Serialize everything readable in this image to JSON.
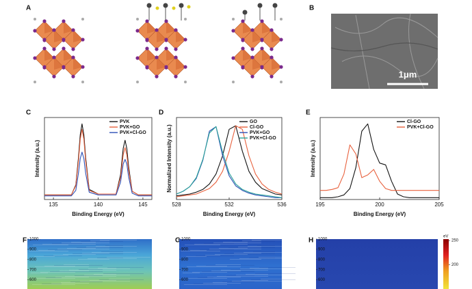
{
  "image_panels": [
    {
      "panel": "A"
    },
    {
      "panel": "B",
      "scale_bar": "1μm"
    }
  ],
  "chart_data": [
    {
      "type": "line",
      "panel": "C",
      "xlabel": "Binding Energy (eV)",
      "ylabel": "Intensity (a.u.)",
      "xlim": [
        134,
        146
      ],
      "xticks": [
        135,
        140,
        145
      ],
      "ylim": [
        0,
        0.9
      ],
      "x": [
        134,
        135,
        136,
        137,
        137.5,
        137.8,
        138,
        138.2,
        138.4,
        138.6,
        139,
        140,
        141,
        142,
        142.5,
        142.8,
        143,
        143.2,
        143.4,
        143.8,
        144.5,
        145,
        146
      ],
      "series": [
        {
          "name": "PVK",
          "color": "#111111",
          "values": [
            0.05,
            0.05,
            0.05,
            0.05,
            0.16,
            0.46,
            0.71,
            0.83,
            0.71,
            0.46,
            0.11,
            0.06,
            0.06,
            0.06,
            0.27,
            0.56,
            0.65,
            0.56,
            0.36,
            0.09,
            0.05,
            0.05,
            0.05
          ]
        },
        {
          "name": "PVK+GO",
          "color": "#e8603c",
          "values": [
            0.05,
            0.05,
            0.05,
            0.05,
            0.15,
            0.42,
            0.66,
            0.77,
            0.66,
            0.42,
            0.1,
            0.06,
            0.06,
            0.06,
            0.24,
            0.49,
            0.57,
            0.49,
            0.32,
            0.09,
            0.05,
            0.05,
            0.05
          ]
        },
        {
          "name": "PVK+Cl-GO",
          "color": "#2b4fb5",
          "values": [
            0.04,
            0.04,
            0.04,
            0.04,
            0.1,
            0.29,
            0.45,
            0.52,
            0.45,
            0.29,
            0.08,
            0.05,
            0.05,
            0.05,
            0.19,
            0.39,
            0.44,
            0.39,
            0.25,
            0.07,
            0.04,
            0.04,
            0.04
          ]
        }
      ]
    },
    {
      "type": "line",
      "panel": "D",
      "xlabel": "Binding Energy (eV)",
      "ylabel": "Normalized Intensity (a.u.)",
      "xlim": [
        528,
        536
      ],
      "xticks": [
        528,
        532,
        536
      ],
      "ylim": [
        0,
        0.9
      ],
      "x": [
        528,
        528.5,
        529,
        529.5,
        530,
        530.5,
        531,
        531.5,
        532,
        532.5,
        533,
        533.5,
        534,
        534.5,
        535,
        535.5,
        536
      ],
      "series": [
        {
          "name": "GO",
          "color": "#111111",
          "values": [
            0.04,
            0.05,
            0.06,
            0.08,
            0.11,
            0.17,
            0.28,
            0.48,
            0.77,
            0.81,
            0.53,
            0.31,
            0.19,
            0.12,
            0.09,
            0.06,
            0.05
          ]
        },
        {
          "name": "Cl-GO",
          "color": "#e8603c",
          "values": [
            0.03,
            0.04,
            0.05,
            0.06,
            0.09,
            0.12,
            0.19,
            0.31,
            0.53,
            0.81,
            0.77,
            0.48,
            0.28,
            0.17,
            0.11,
            0.08,
            0.06
          ]
        },
        {
          "name": "PVK+GO",
          "color": "#2b4fb5",
          "values": [
            0.06,
            0.09,
            0.14,
            0.23,
            0.43,
            0.75,
            0.8,
            0.48,
            0.26,
            0.15,
            0.1,
            0.07,
            0.05,
            0.04,
            0.03,
            0.02,
            0.02
          ]
        },
        {
          "name": "PVK+Cl-GO",
          "color": "#2aa198",
          "values": [
            0.06,
            0.09,
            0.14,
            0.24,
            0.44,
            0.73,
            0.8,
            0.52,
            0.29,
            0.17,
            0.11,
            0.08,
            0.06,
            0.05,
            0.04,
            0.03,
            0.02
          ]
        }
      ]
    },
    {
      "type": "line",
      "panel": "E",
      "xlabel": "Binding Energy (eV)",
      "ylabel": "Intensity (a.u.)",
      "xlim": [
        195,
        205
      ],
      "xticks": [
        195,
        200,
        205
      ],
      "ylim": [
        0,
        0.9
      ],
      "x": [
        195,
        195.5,
        196,
        196.5,
        197,
        197.5,
        198,
        198.5,
        199,
        199.5,
        200,
        200.5,
        201,
        201.5,
        202,
        202.5,
        203,
        203.5,
        204,
        204.5,
        205
      ],
      "series": [
        {
          "name": "Cl-GO",
          "color": "#111111",
          "values": [
            0.02,
            0.02,
            0.02,
            0.03,
            0.05,
            0.12,
            0.35,
            0.75,
            0.83,
            0.55,
            0.4,
            0.38,
            0.2,
            0.06,
            0.03,
            0.02,
            0.02,
            0.02,
            0.02,
            0.02,
            0.02
          ]
        },
        {
          "name": "PVK+Cl-GO",
          "color": "#e8603c",
          "values": [
            0.1,
            0.1,
            0.11,
            0.13,
            0.28,
            0.6,
            0.5,
            0.24,
            0.27,
            0.33,
            0.2,
            0.12,
            0.1,
            0.1,
            0.1,
            0.1,
            0.1,
            0.1,
            0.1,
            0.1,
            0.1
          ]
        }
      ]
    },
    {
      "type": "heatmap",
      "panel": "F",
      "fill": "gradF",
      "ylim": [
        510,
        1000
      ],
      "yticks": [
        1000,
        900,
        800,
        700,
        600
      ]
    },
    {
      "type": "heatmap",
      "panel": "G",
      "fill": "gradG",
      "ylim": [
        510,
        1000
      ],
      "yticks": [
        1000,
        900,
        800,
        700,
        600
      ]
    },
    {
      "type": "heatmap",
      "panel": "H",
      "fill": "gradH",
      "ylim": [
        510,
        1000
      ],
      "yticks": [
        1000,
        900,
        800,
        700,
        600
      ],
      "colorbar": {
        "label": "eV",
        "lim": [
          150,
          253
        ],
        "ticks": [
          250,
          200
        ]
      }
    }
  ]
}
